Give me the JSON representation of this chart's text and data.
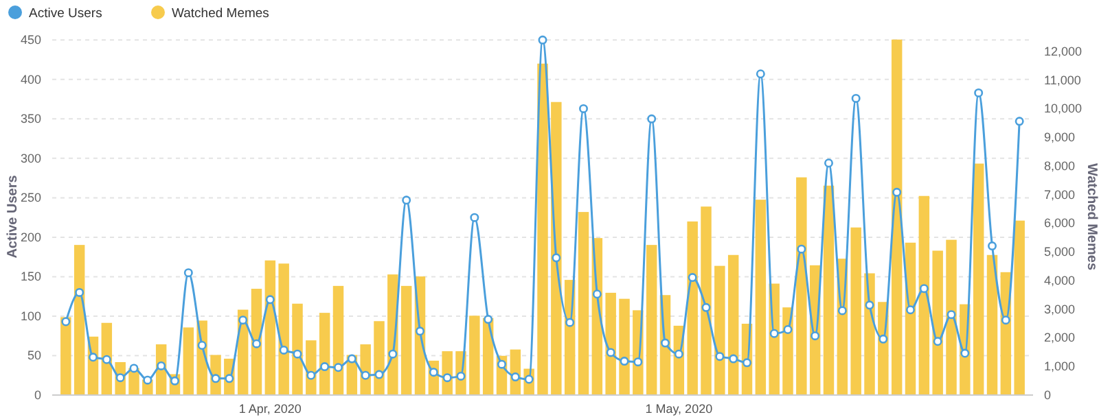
{
  "chart_data": {
    "type": "bar",
    "x": [
      "2020-03-17",
      "2020-03-18",
      "2020-03-19",
      "2020-03-20",
      "2020-03-21",
      "2020-03-22",
      "2020-03-23",
      "2020-03-24",
      "2020-03-25",
      "2020-03-26",
      "2020-03-27",
      "2020-03-28",
      "2020-03-29",
      "2020-03-30",
      "2020-03-31",
      "2020-04-01",
      "2020-04-02",
      "2020-04-03",
      "2020-04-04",
      "2020-04-05",
      "2020-04-06",
      "2020-04-07",
      "2020-04-08",
      "2020-04-09",
      "2020-04-10",
      "2020-04-11",
      "2020-04-12",
      "2020-04-13",
      "2020-04-14",
      "2020-04-15",
      "2020-04-16",
      "2020-04-17",
      "2020-04-18",
      "2020-04-19",
      "2020-04-20",
      "2020-04-21",
      "2020-04-22",
      "2020-04-23",
      "2020-04-24",
      "2020-04-25",
      "2020-04-26",
      "2020-04-27",
      "2020-04-28",
      "2020-04-29",
      "2020-04-30",
      "2020-05-01",
      "2020-05-02",
      "2020-05-03",
      "2020-05-04",
      "2020-05-05",
      "2020-05-06",
      "2020-05-07",
      "2020-05-08",
      "2020-05-09",
      "2020-05-10",
      "2020-05-11",
      "2020-05-12",
      "2020-05-13",
      "2020-05-14",
      "2020-05-15",
      "2020-05-16",
      "2020-05-17",
      "2020-05-18",
      "2020-05-19",
      "2020-05-20",
      "2020-05-21",
      "2020-05-22",
      "2020-05-23",
      "2020-05-24",
      "2020-05-25",
      "2020-05-26"
    ],
    "xlim": [
      "2020-03-16",
      "2020-05-27"
    ],
    "xticks": [
      {
        "value": "2020-04-01",
        "label": "1 Apr, 2020"
      },
      {
        "value": "2020-05-01",
        "label": "1 May, 2020"
      }
    ],
    "ylabel": "Active Users",
    "y2label": "Watched Memes",
    "ylim": [
      0,
      452
    ],
    "yticks": [
      0,
      50,
      100,
      150,
      200,
      250,
      300,
      350,
      400,
      450
    ],
    "y2lim": [
      0,
      12450
    ],
    "y2ticks": [
      {
        "value": 0,
        "label": "0"
      },
      {
        "value": 1000,
        "label": "1,000"
      },
      {
        "value": 2000,
        "label": "2,000"
      },
      {
        "value": 3000,
        "label": "3,000"
      },
      {
        "value": 4000,
        "label": "4,000"
      },
      {
        "value": 5000,
        "label": "5,000"
      },
      {
        "value": 6000,
        "label": "6,000"
      },
      {
        "value": 7000,
        "label": "7,000"
      },
      {
        "value": 8000,
        "label": "8,000"
      },
      {
        "value": 9000,
        "label": "9,000"
      },
      {
        "value": 10000,
        "label": "10,000"
      },
      {
        "value": 11000,
        "label": "11,000"
      },
      {
        "value": 12000,
        "label": "12,000"
      }
    ],
    "grid": "y",
    "legend": "top left",
    "marker": "circle",
    "line_style": "solid",
    "series": [
      {
        "name": "Active Users",
        "type": "line",
        "color": "#4a9fdc",
        "values": [
          93,
          130,
          48,
          45,
          22,
          34,
          19,
          37,
          18,
          155,
          63,
          21,
          21,
          95,
          65,
          121,
          57,
          52,
          25,
          36,
          35,
          46,
          25,
          26,
          52,
          247,
          81,
          29,
          22,
          24,
          225,
          96,
          39,
          23,
          20,
          450,
          174,
          92,
          363,
          128,
          54,
          43,
          42,
          350,
          66,
          52,
          149,
          111,
          49,
          46,
          41,
          407,
          78,
          83,
          185,
          75,
          294,
          107,
          376,
          114,
          71,
          257,
          108,
          135,
          68,
          102,
          53,
          383,
          189,
          95,
          347
        ]
      },
      {
        "name": "Watched Memes",
        "axis": "y2",
        "color": "#f7cb4d",
        "values": [
          2720,
          5240,
          2040,
          2520,
          1150,
          940,
          540,
          1770,
          730,
          2360,
          2600,
          1400,
          1270,
          2980,
          3710,
          4700,
          4590,
          3190,
          1910,
          2870,
          3810,
          1400,
          1770,
          2580,
          4210,
          3810,
          4140,
          1200,
          1530,
          1530,
          2770,
          2690,
          1370,
          1590,
          920,
          11570,
          10230,
          4020,
          6390,
          5480,
          3570,
          3360,
          2960,
          5240,
          3490,
          2420,
          6060,
          6580,
          4510,
          4890,
          2490,
          6820,
          3890,
          3060,
          7600,
          4530,
          7310,
          4760,
          5850,
          4250,
          3250,
          12410,
          5320,
          6950,
          5040,
          5420,
          3170,
          8080,
          4890,
          4290,
          6090
        ]
      }
    ]
  }
}
